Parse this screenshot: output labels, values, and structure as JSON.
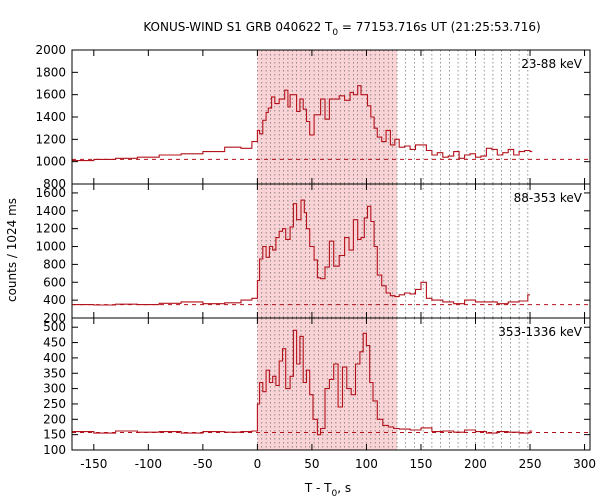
{
  "chart_data": {
    "type": "line",
    "title_prefix": "KONUS-WIND S1 GRB 040622 T",
    "title_sub": "0",
    "title_suffix": " = 77153.716s UT (21:25:53.716)",
    "xlabel_prefix": "T - T",
    "xlabel_sub": "0",
    "xlabel_suffix": ", s",
    "ylabel": "counts / 1024 ms",
    "xlim": [
      -170,
      305
    ],
    "xticks": [
      -150,
      -100,
      -50,
      0,
      50,
      100,
      150,
      200,
      250,
      300
    ],
    "shaded_interval": [
      0,
      128
    ],
    "shaded_color": "#f9d3d6",
    "line_color": "#b3121b",
    "dotted_lines_x": [
      0,
      4,
      8,
      12,
      16,
      20,
      24,
      28,
      32,
      36,
      40,
      44,
      48,
      52,
      56,
      60,
      64,
      68,
      72,
      76,
      80,
      84,
      88,
      92,
      96,
      100,
      104,
      108,
      112,
      116,
      120,
      124,
      128,
      136,
      144,
      152,
      160,
      168,
      176,
      184,
      192,
      200,
      208,
      216,
      224,
      232,
      240,
      248
    ],
    "panels": [
      {
        "band": "23-88 keV",
        "ylim": [
          800,
          2000
        ],
        "yticks": [
          800,
          1000,
          1200,
          1400,
          1600,
          1800,
          2000
        ],
        "background": 1020,
        "t": [
          -170,
          -150,
          -130,
          -110,
          -90,
          -70,
          -50,
          -30,
          -15,
          -5,
          0,
          2,
          5,
          8,
          10,
          13,
          16,
          20,
          25,
          28,
          30,
          34,
          36,
          39,
          42,
          45,
          48,
          52,
          55,
          58,
          62,
          66,
          70,
          75,
          80,
          85,
          88,
          92,
          95,
          98,
          101,
          104,
          107,
          110,
          114,
          118,
          122,
          126,
          130,
          135,
          140,
          145,
          150,
          155,
          160,
          165,
          170,
          175,
          180,
          185,
          190,
          195,
          200,
          205,
          210,
          215,
          220,
          225,
          230,
          235,
          240,
          245,
          250
        ],
        "v": [
          1010,
          1020,
          1030,
          1040,
          1060,
          1070,
          1090,
          1130,
          1120,
          1180,
          1280,
          1250,
          1370,
          1440,
          1480,
          1580,
          1520,
          1560,
          1640,
          1490,
          1600,
          1600,
          1450,
          1560,
          1470,
          1360,
          1240,
          1420,
          1420,
          1560,
          1380,
          1560,
          1560,
          1590,
          1550,
          1620,
          1600,
          1680,
          1600,
          1600,
          1500,
          1400,
          1300,
          1220,
          1180,
          1280,
          1150,
          1200,
          1130,
          1140,
          1110,
          1150,
          1150,
          1100,
          1060,
          1080,
          1040,
          1050,
          1090,
          1030,
          1060,
          1070,
          1040,
          1050,
          1120,
          1110,
          1060,
          1080,
          1110,
          1060,
          1090,
          1100,
          1090
        ]
      },
      {
        "band": "88-353 keV",
        "ylim": [
          200,
          1700
        ],
        "yticks": [
          200,
          400,
          600,
          800,
          1000,
          1200,
          1400,
          1600
        ],
        "background": 350,
        "t": [
          -170,
          -150,
          -130,
          -110,
          -90,
          -70,
          -50,
          -30,
          -15,
          -5,
          0,
          2,
          5,
          8,
          11,
          14,
          17,
          20,
          23,
          26,
          30,
          33,
          36,
          40,
          43,
          45,
          48,
          52,
          55,
          58,
          62,
          66,
          70,
          75,
          80,
          84,
          88,
          92,
          95,
          98,
          101,
          104,
          107,
          110,
          114,
          118,
          122,
          126,
          130,
          135,
          140,
          145,
          150,
          155,
          160,
          170,
          180,
          190,
          200,
          210,
          220,
          230,
          240,
          248
        ],
        "v": [
          350,
          345,
          355,
          350,
          365,
          380,
          360,
          370,
          400,
          420,
          620,
          860,
          1000,
          880,
          1000,
          960,
          1100,
          1170,
          1200,
          1080,
          1220,
          1480,
          1300,
          1520,
          1380,
          1200,
          1000,
          850,
          650,
          640,
          770,
          1060,
          780,
          900,
          1100,
          960,
          1300,
          1080,
          1100,
          1320,
          1450,
          1280,
          1000,
          680,
          560,
          480,
          450,
          440,
          460,
          480,
          470,
          520,
          600,
          420,
          400,
          380,
          360,
          400,
          380,
          380,
          360,
          380,
          390,
          460
        ]
      },
      {
        "band": "353-1336 keV",
        "ylim": [
          100,
          530
        ],
        "yticks": [
          100,
          150,
          200,
          250,
          300,
          350,
          400,
          450,
          500
        ],
        "background": 157,
        "t": [
          -170,
          -150,
          -130,
          -110,
          -90,
          -70,
          -50,
          -30,
          -15,
          -5,
          0,
          2,
          5,
          8,
          11,
          14,
          17,
          20,
          23,
          26,
          30,
          33,
          36,
          39,
          42,
          45,
          48,
          51,
          55,
          58,
          62,
          66,
          70,
          74,
          78,
          82,
          86,
          90,
          94,
          97,
          100,
          103,
          106,
          110,
          115,
          120,
          125,
          130,
          140,
          150,
          160,
          170,
          180,
          190,
          200,
          210,
          220,
          230,
          240,
          250
        ],
        "v": [
          160,
          155,
          162,
          158,
          160,
          155,
          160,
          158,
          160,
          162,
          250,
          320,
          290,
          360,
          320,
          340,
          310,
          390,
          430,
          300,
          340,
          490,
          380,
          470,
          320,
          360,
          280,
          200,
          150,
          170,
          300,
          330,
          380,
          240,
          370,
          300,
          280,
          380,
          420,
          480,
          440,
          320,
          260,
          200,
          180,
          175,
          170,
          168,
          165,
          172,
          160,
          162,
          158,
          165,
          160,
          155,
          160,
          158,
          155,
          162
        ]
      }
    ]
  }
}
